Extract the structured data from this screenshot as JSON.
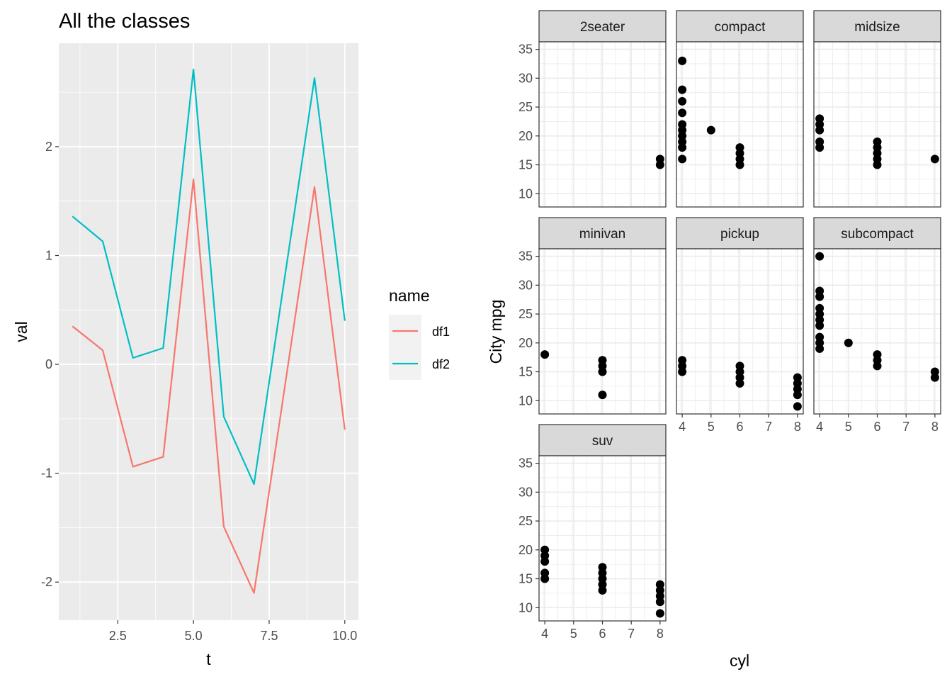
{
  "colors": {
    "df1": "#F8766D",
    "df2": "#00BFC4",
    "panel_bg": "#EBEBEB",
    "strip_bg": "#D9D9D9",
    "point": "#000000"
  },
  "chart_data": [
    {
      "type": "line",
      "title": "All the classes",
      "xlabel": "t",
      "ylabel": "val",
      "xlim": [
        0.55,
        10.45
      ],
      "ylim": [
        -2.35,
        2.95
      ],
      "x_ticks": [
        2.5,
        5.0,
        7.5,
        10.0
      ],
      "x_tick_labels": [
        "2.5",
        "5.0",
        "7.5",
        "10.0"
      ],
      "y_ticks": [
        -2,
        -1,
        0,
        1,
        2
      ],
      "y_tick_labels": [
        "-2",
        "-1",
        "0",
        "1",
        "2"
      ],
      "grid": true,
      "legend": {
        "title": "name",
        "placement": "right"
      },
      "x": [
        1,
        2,
        3,
        4,
        5,
        6,
        7,
        8,
        9,
        10
      ],
      "series": [
        {
          "name": "df1",
          "values": [
            0.35,
            0.13,
            -0.94,
            -0.85,
            1.7,
            -1.49,
            -2.1,
            -0.24,
            1.63,
            -0.6
          ]
        },
        {
          "name": "df2",
          "values": [
            1.36,
            1.13,
            0.06,
            0.15,
            2.71,
            -0.48,
            -1.1,
            0.77,
            2.63,
            0.4
          ]
        }
      ]
    },
    {
      "type": "scatter",
      "xlabel": "cyl",
      "ylabel": "City mpg",
      "xlim": [
        3.8,
        8.2
      ],
      "ylim": [
        7.7,
        36.3
      ],
      "x_ticks": [
        4,
        5,
        6,
        7,
        8
      ],
      "x_tick_labels": [
        "4",
        "5",
        "6",
        "7",
        "8"
      ],
      "y_ticks": [
        10,
        15,
        20,
        25,
        30,
        35
      ],
      "y_tick_labels": [
        "10",
        "15",
        "20",
        "25",
        "30",
        "35"
      ],
      "grid": true,
      "facets": [
        {
          "name": "2seater",
          "points": [
            [
              8,
              15
            ],
            [
              8,
              16
            ]
          ]
        },
        {
          "name": "compact",
          "points": [
            [
              4,
              16
            ],
            [
              4,
              18
            ],
            [
              4,
              19
            ],
            [
              4,
              20
            ],
            [
              4,
              21
            ],
            [
              4,
              22
            ],
            [
              4,
              24
            ],
            [
              4,
              26
            ],
            [
              4,
              28
            ],
            [
              4,
              33
            ],
            [
              5,
              21
            ],
            [
              6,
              15
            ],
            [
              6,
              16
            ],
            [
              6,
              17
            ],
            [
              6,
              18
            ]
          ]
        },
        {
          "name": "midsize",
          "points": [
            [
              4,
              18
            ],
            [
              4,
              19
            ],
            [
              4,
              21
            ],
            [
              4,
              22
            ],
            [
              4,
              23
            ],
            [
              6,
              15
            ],
            [
              6,
              16
            ],
            [
              6,
              17
            ],
            [
              6,
              18
            ],
            [
              6,
              19
            ],
            [
              8,
              16
            ]
          ]
        },
        {
          "name": "minivan",
          "points": [
            [
              4,
              18
            ],
            [
              6,
              11
            ],
            [
              6,
              15
            ],
            [
              6,
              16
            ],
            [
              6,
              17
            ]
          ]
        },
        {
          "name": "pickup",
          "points": [
            [
              4,
              15
            ],
            [
              4,
              16
            ],
            [
              4,
              17
            ],
            [
              6,
              13
            ],
            [
              6,
              14
            ],
            [
              6,
              15
            ],
            [
              6,
              16
            ],
            [
              8,
              9
            ],
            [
              8,
              11
            ],
            [
              8,
              12
            ],
            [
              8,
              13
            ],
            [
              8,
              14
            ]
          ]
        },
        {
          "name": "subcompact",
          "points": [
            [
              4,
              19
            ],
            [
              4,
              20
            ],
            [
              4,
              21
            ],
            [
              4,
              23
            ],
            [
              4,
              24
            ],
            [
              4,
              25
            ],
            [
              4,
              26
            ],
            [
              4,
              28
            ],
            [
              4,
              29
            ],
            [
              4,
              35
            ],
            [
              5,
              20
            ],
            [
              6,
              16
            ],
            [
              6,
              17
            ],
            [
              6,
              18
            ],
            [
              8,
              14
            ],
            [
              8,
              15
            ]
          ]
        },
        {
          "name": "suv",
          "points": [
            [
              4,
              15
            ],
            [
              4,
              16
            ],
            [
              4,
              18
            ],
            [
              4,
              19
            ],
            [
              4,
              20
            ],
            [
              6,
              13
            ],
            [
              6,
              14
            ],
            [
              6,
              15
            ],
            [
              6,
              16
            ],
            [
              6,
              17
            ],
            [
              8,
              9
            ],
            [
              8,
              11
            ],
            [
              8,
              12
            ],
            [
              8,
              13
            ],
            [
              8,
              14
            ]
          ]
        }
      ]
    }
  ]
}
